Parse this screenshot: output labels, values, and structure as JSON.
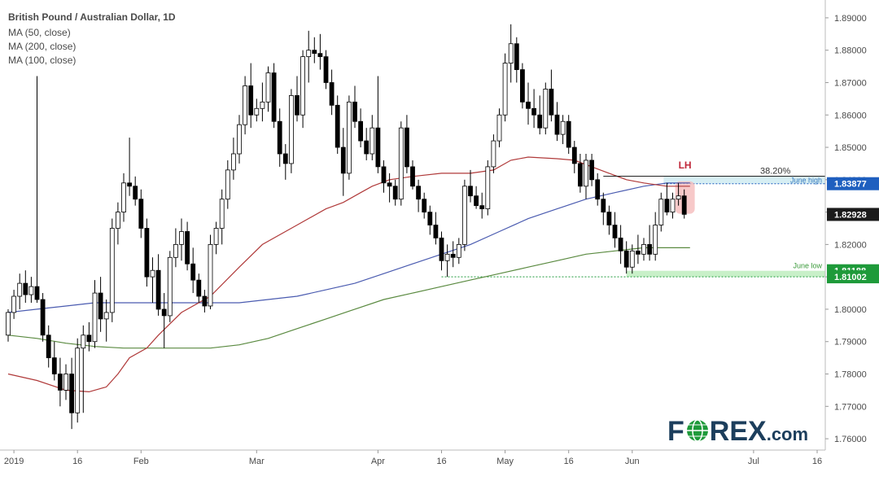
{
  "chart_data": {
    "type": "candlestick",
    "title": "British Pound / Australian Dollar, 1D",
    "legend": [
      "MA (50, close)",
      "MA (200, close)",
      "MA (100, close)"
    ],
    "ylim": [
      1.7565,
      1.8945
    ],
    "y_ticks": [
      "1.89000",
      "1.88000",
      "1.87000",
      "1.86000",
      "1.85000",
      "1.84000",
      "1.83000",
      "1.82000",
      "1.81000",
      "1.80000",
      "1.79000",
      "1.78000",
      "1.77000",
      "1.76000"
    ],
    "x_ticks": [
      {
        "label": "2019",
        "index": 1
      },
      {
        "label": "16",
        "index": 12
      },
      {
        "label": "Feb",
        "index": 23
      },
      {
        "label": "Mar",
        "index": 43
      },
      {
        "label": "Apr",
        "index": 64
      },
      {
        "label": "16",
        "index": 75
      },
      {
        "label": "May",
        "index": 86
      },
      {
        "label": "16",
        "index": 97
      },
      {
        "label": "Jun",
        "index": 108
      },
      {
        "label": "Jul",
        "index": 129
      },
      {
        "label": "16",
        "index": 140
      }
    ],
    "price_labels": [
      {
        "text": "1.83877",
        "value": 1.83877,
        "color": "#1f5fbf"
      },
      {
        "text": "1.82928",
        "value": 1.82928,
        "color": "#ffffff"
      },
      {
        "text": "1.81188",
        "value": 1.81188,
        "color": "#1e9a3a"
      },
      {
        "text": "1.81002",
        "value": 1.81002,
        "color": "#1e9a3a"
      }
    ],
    "candles": [
      [
        1.792,
        1.8,
        1.79,
        1.799
      ],
      [
        1.799,
        1.806,
        1.797,
        1.804
      ],
      [
        1.804,
        1.811,
        1.8,
        1.808
      ],
      [
        1.808,
        1.812,
        1.802,
        1.8045
      ],
      [
        1.8045,
        1.81,
        1.802,
        1.807
      ],
      [
        1.807,
        1.872,
        1.802,
        1.803
      ],
      [
        1.803,
        1.805,
        1.79,
        1.792
      ],
      [
        1.792,
        1.795,
        1.782,
        1.785
      ],
      [
        1.785,
        1.79,
        1.778,
        1.78
      ],
      [
        1.78,
        1.785,
        1.77,
        1.775
      ],
      [
        1.775,
        1.783,
        1.772,
        1.78
      ],
      [
        1.78,
        1.785,
        1.763,
        1.768
      ],
      [
        1.768,
        1.791,
        1.765,
        1.788
      ],
      [
        1.788,
        1.795,
        1.768,
        1.792
      ],
      [
        1.792,
        1.796,
        1.787,
        1.79
      ],
      [
        1.79,
        1.809,
        1.788,
        1.805
      ],
      [
        1.805,
        1.81,
        1.793,
        1.797
      ],
      [
        1.797,
        1.803,
        1.79,
        1.799
      ],
      [
        1.799,
        1.828,
        1.796,
        1.825
      ],
      [
        1.825,
        1.833,
        1.82,
        1.83
      ],
      [
        1.83,
        1.842,
        1.827,
        1.839
      ],
      [
        1.839,
        1.853,
        1.835,
        1.838
      ],
      [
        1.838,
        1.841,
        1.832,
        1.834
      ],
      [
        1.834,
        1.837,
        1.822,
        1.825
      ],
      [
        1.825,
        1.828,
        1.807,
        1.81
      ],
      [
        1.81,
        1.816,
        1.802,
        1.812
      ],
      [
        1.812,
        1.817,
        1.798,
        1.8
      ],
      [
        1.8,
        1.805,
        1.788,
        1.798
      ],
      [
        1.798,
        1.818,
        1.796,
        1.816
      ],
      [
        1.816,
        1.825,
        1.813,
        1.82
      ],
      [
        1.82,
        1.828,
        1.815,
        1.824
      ],
      [
        1.824,
        1.827,
        1.812,
        1.814
      ],
      [
        1.814,
        1.819,
        1.805,
        1.809
      ],
      [
        1.809,
        1.811,
        1.802,
        1.804
      ],
      [
        1.804,
        1.806,
        1.799,
        1.801
      ],
      [
        1.801,
        1.823,
        1.8,
        1.82
      ],
      [
        1.82,
        1.827,
        1.817,
        1.825
      ],
      [
        1.825,
        1.837,
        1.82,
        1.834
      ],
      [
        1.834,
        1.846,
        1.831,
        1.843
      ],
      [
        1.843,
        1.853,
        1.84,
        1.848
      ],
      [
        1.848,
        1.86,
        1.845,
        1.857
      ],
      [
        1.857,
        1.872,
        1.854,
        1.869
      ],
      [
        1.869,
        1.876,
        1.856,
        1.86
      ],
      [
        1.86,
        1.865,
        1.858,
        1.862
      ],
      [
        1.862,
        1.87,
        1.858,
        1.864
      ],
      [
        1.864,
        1.875,
        1.861,
        1.873
      ],
      [
        1.873,
        1.876,
        1.856,
        1.858
      ],
      [
        1.858,
        1.862,
        1.844,
        1.848
      ],
      [
        1.848,
        1.851,
        1.84,
        1.845
      ],
      [
        1.845,
        1.868,
        1.842,
        1.866
      ],
      [
        1.866,
        1.872,
        1.858,
        1.86
      ],
      [
        1.86,
        1.88,
        1.856,
        1.878
      ],
      [
        1.878,
        1.886,
        1.87,
        1.88
      ],
      [
        1.88,
        1.884,
        1.876,
        1.879
      ],
      [
        1.879,
        1.885,
        1.874,
        1.878
      ],
      [
        1.878,
        1.88,
        1.868,
        1.87
      ],
      [
        1.87,
        1.874,
        1.86,
        1.863
      ],
      [
        1.863,
        1.866,
        1.848,
        1.85
      ],
      [
        1.85,
        1.856,
        1.835,
        1.842
      ],
      [
        1.842,
        1.866,
        1.84,
        1.864
      ],
      [
        1.864,
        1.869,
        1.856,
        1.858
      ],
      [
        1.858,
        1.862,
        1.85,
        1.852
      ],
      [
        1.852,
        1.856,
        1.846,
        1.848
      ],
      [
        1.848,
        1.86,
        1.846,
        1.856
      ],
      [
        1.856,
        1.872,
        1.842,
        1.844
      ],
      [
        1.844,
        1.846,
        1.836,
        1.839
      ],
      [
        1.839,
        1.842,
        1.833,
        1.838
      ],
      [
        1.838,
        1.84,
        1.832,
        1.834
      ],
      [
        1.834,
        1.858,
        1.832,
        1.856
      ],
      [
        1.856,
        1.86,
        1.842,
        1.844
      ],
      [
        1.844,
        1.846,
        1.837,
        1.838
      ],
      [
        1.838,
        1.84,
        1.83,
        1.834
      ],
      [
        1.834,
        1.836,
        1.828,
        1.83
      ],
      [
        1.83,
        1.832,
        1.823,
        1.826
      ],
      [
        1.826,
        1.83,
        1.82,
        1.822
      ],
      [
        1.822,
        1.824,
        1.812,
        1.815
      ],
      [
        1.815,
        1.82,
        1.81,
        1.817
      ],
      [
        1.817,
        1.821,
        1.813,
        1.816
      ],
      [
        1.816,
        1.822,
        1.814,
        1.82
      ],
      [
        1.82,
        1.84,
        1.818,
        1.838
      ],
      [
        1.838,
        1.843,
        1.833,
        1.835
      ],
      [
        1.835,
        1.838,
        1.831,
        1.832
      ],
      [
        1.832,
        1.836,
        1.828,
        1.831
      ],
      [
        1.831,
        1.846,
        1.829,
        1.844
      ],
      [
        1.844,
        1.854,
        1.842,
        1.852
      ],
      [
        1.852,
        1.862,
        1.85,
        1.86
      ],
      [
        1.86,
        1.879,
        1.858,
        1.876
      ],
      [
        1.876,
        1.888,
        1.87,
        1.882
      ],
      [
        1.882,
        1.884,
        1.87,
        1.874
      ],
      [
        1.874,
        1.876,
        1.862,
        1.864
      ],
      [
        1.864,
        1.87,
        1.857,
        1.862
      ],
      [
        1.862,
        1.868,
        1.856,
        1.86
      ],
      [
        1.86,
        1.866,
        1.854,
        1.856
      ],
      [
        1.856,
        1.87,
        1.854,
        1.868
      ],
      [
        1.868,
        1.874,
        1.858,
        1.86
      ],
      [
        1.86,
        1.864,
        1.852,
        1.854
      ],
      [
        1.854,
        1.86,
        1.851,
        1.858
      ],
      [
        1.858,
        1.86,
        1.848,
        1.85
      ],
      [
        1.85,
        1.852,
        1.842,
        1.845
      ],
      [
        1.845,
        1.848,
        1.836,
        1.838
      ],
      [
        1.838,
        1.848,
        1.834,
        1.846
      ],
      [
        1.846,
        1.848,
        1.838,
        1.84
      ],
      [
        1.84,
        1.842,
        1.832,
        1.834
      ],
      [
        1.834,
        1.836,
        1.826,
        1.83
      ],
      [
        1.83,
        1.832,
        1.823,
        1.826
      ],
      [
        1.826,
        1.83,
        1.819,
        1.822
      ],
      [
        1.822,
        1.826,
        1.814,
        1.818
      ],
      [
        1.818,
        1.821,
        1.811,
        1.813
      ],
      [
        1.813,
        1.82,
        1.811,
        1.818
      ],
      [
        1.818,
        1.823,
        1.814,
        1.817
      ],
      [
        1.817,
        1.822,
        1.815,
        1.82
      ],
      [
        1.82,
        1.826,
        1.815,
        1.817
      ],
      [
        1.817,
        1.83,
        1.815,
        1.826
      ],
      [
        1.826,
        1.836,
        1.824,
        1.834
      ],
      [
        1.834,
        1.839,
        1.829,
        1.83
      ],
      [
        1.83,
        1.836,
        1.828,
        1.834
      ],
      [
        1.834,
        1.839,
        1.832,
        1.835
      ],
      [
        1.835,
        1.837,
        1.828,
        1.8293
      ]
    ],
    "ma50": [
      [
        0,
        1.78
      ],
      [
        5,
        1.778
      ],
      [
        10,
        1.775
      ],
      [
        14,
        1.7745
      ],
      [
        17,
        1.776
      ],
      [
        19,
        1.78
      ],
      [
        21,
        1.785
      ],
      [
        24,
        1.788
      ],
      [
        26,
        1.792
      ],
      [
        30,
        1.799
      ],
      [
        35,
        1.804
      ],
      [
        40,
        1.813
      ],
      [
        44,
        1.82
      ],
      [
        50,
        1.826
      ],
      [
        55,
        1.831
      ],
      [
        58,
        1.833
      ],
      [
        61,
        1.836
      ],
      [
        63,
        1.838
      ],
      [
        66,
        1.84
      ],
      [
        70,
        1.841
      ],
      [
        75,
        1.842
      ],
      [
        80,
        1.842
      ],
      [
        84,
        1.843
      ],
      [
        87,
        1.846
      ],
      [
        90,
        1.847
      ],
      [
        95,
        1.8465
      ],
      [
        98,
        1.846
      ],
      [
        101,
        1.844
      ],
      [
        104,
        1.842
      ],
      [
        107,
        1.84
      ],
      [
        110,
        1.839
      ],
      [
        114,
        1.838
      ],
      [
        118,
        1.838
      ]
    ],
    "ma100": [
      [
        0,
        1.799
      ],
      [
        5,
        1.8
      ],
      [
        10,
        1.801
      ],
      [
        15,
        1.802
      ],
      [
        20,
        1.802
      ],
      [
        25,
        1.802
      ],
      [
        30,
        1.802
      ],
      [
        35,
        1.802
      ],
      [
        40,
        1.802
      ],
      [
        45,
        1.803
      ],
      [
        50,
        1.804
      ],
      [
        55,
        1.806
      ],
      [
        60,
        1.808
      ],
      [
        65,
        1.811
      ],
      [
        70,
        1.814
      ],
      [
        75,
        1.817
      ],
      [
        80,
        1.82
      ],
      [
        85,
        1.824
      ],
      [
        90,
        1.828
      ],
      [
        95,
        1.831
      ],
      [
        100,
        1.834
      ],
      [
        105,
        1.836
      ],
      [
        110,
        1.838
      ],
      [
        114,
        1.839
      ],
      [
        118,
        1.839
      ]
    ],
    "ma200": [
      [
        0,
        1.792
      ],
      [
        5,
        1.791
      ],
      [
        10,
        1.7895
      ],
      [
        15,
        1.7885
      ],
      [
        20,
        1.788
      ],
      [
        25,
        1.788
      ],
      [
        30,
        1.788
      ],
      [
        35,
        1.788
      ],
      [
        40,
        1.789
      ],
      [
        45,
        1.791
      ],
      [
        50,
        1.794
      ],
      [
        55,
        1.797
      ],
      [
        60,
        1.8
      ],
      [
        65,
        1.803
      ],
      [
        70,
        1.805
      ],
      [
        75,
        1.807
      ],
      [
        80,
        1.809
      ],
      [
        85,
        1.811
      ],
      [
        90,
        1.813
      ],
      [
        95,
        1.815
      ],
      [
        100,
        1.817
      ],
      [
        105,
        1.818
      ],
      [
        110,
        1.819
      ],
      [
        114,
        1.819
      ],
      [
        118,
        1.819
      ]
    ],
    "annotations": {
      "fib_label": "38.20%",
      "fib_value": 1.8411,
      "fib_start_index": 103,
      "june_high_label": "June high",
      "june_high_value": 1.83877,
      "june_high_start_index": 114,
      "june_low_label": "June low",
      "june_low_value": 1.81188,
      "june_low2_value": 1.81002,
      "june_low_start_index": 75,
      "june_low_zone_start_index": 107,
      "lh_label": "LH",
      "lh_index": 116
    }
  },
  "colors": {
    "ma50": "#b03a3a",
    "ma100": "#4a5bb0",
    "ma200": "#5a8a40",
    "june_high": "#1f5fbf",
    "june_low": "#1e9a3a",
    "current": "#1b1b1b",
    "lh": "#c0283a"
  },
  "branding": {
    "logo_prefix": "F",
    "logo_suffix": "REX",
    "logo_domain": ".com"
  }
}
